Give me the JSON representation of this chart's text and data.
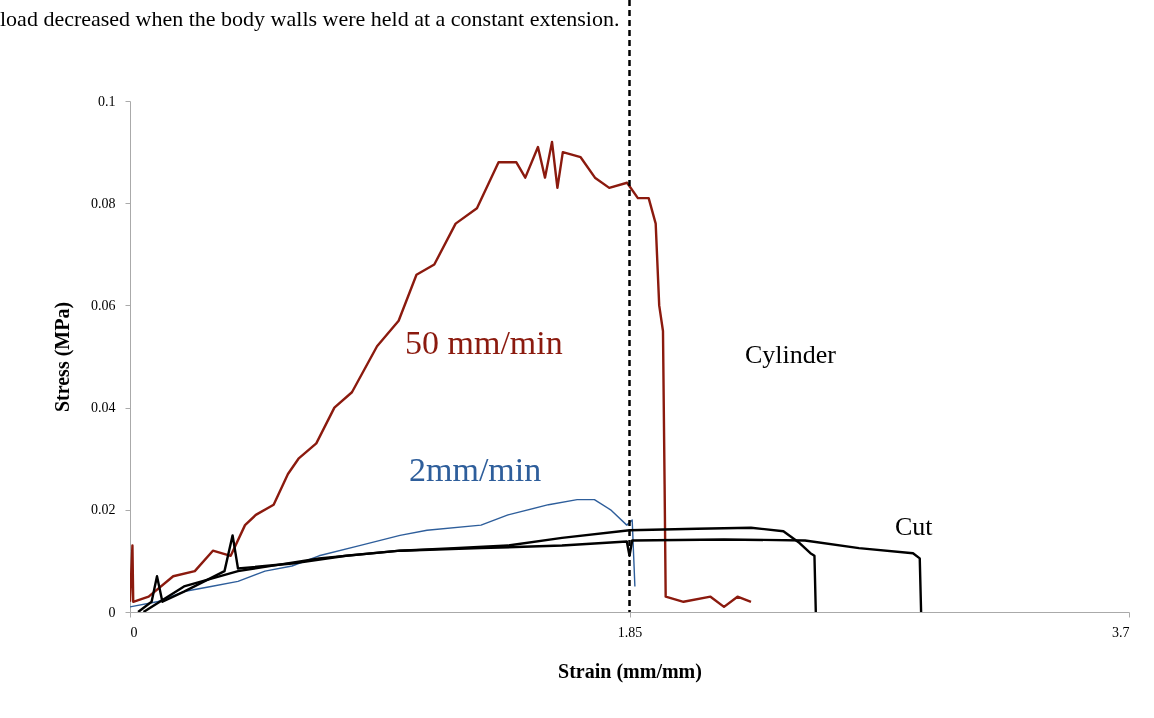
{
  "chart_data": {
    "type": "line",
    "xlabel": "Strain (mm/mm)",
    "ylabel": "Stress (MPa)",
    "xlim": [
      0,
      3.7
    ],
    "xticks": [
      0,
      1.85,
      3.7
    ],
    "ylim": [
      0,
      0.1
    ],
    "yticks": [
      0,
      0.02,
      0.04,
      0.06,
      0.08,
      0.1
    ],
    "grid": false,
    "marker": "none",
    "line_style": "solid",
    "series": [
      {
        "name": "50 mm/min",
        "color": "#8b1a0e",
        "x": [
          0,
          0.009,
          0.012,
          0.069,
          0.16,
          0.24,
          0.307,
          0.373,
          0.426,
          0.466,
          0.532,
          0.585,
          0.624,
          0.69,
          0.757,
          0.822,
          0.915,
          0.995,
          1.061,
          1.127,
          1.206,
          1.285,
          1.365,
          1.431,
          1.464,
          1.511,
          1.537,
          1.563,
          1.583,
          1.603,
          1.669,
          1.722,
          1.775,
          1.841,
          1.881,
          1.921,
          1.947,
          1.96,
          1.974,
          1.98,
          1.984,
          2.05,
          2.15,
          2.2,
          2.25,
          2.3
        ],
        "values": [
          0.002,
          0.013,
          0.002,
          0.003,
          0.007,
          0.008,
          0.012,
          0.011,
          0.017,
          0.019,
          0.021,
          0.027,
          0.03,
          0.033,
          0.04,
          0.043,
          0.052,
          0.057,
          0.066,
          0.068,
          0.076,
          0.079,
          0.088,
          0.088,
          0.085,
          0.091,
          0.085,
          0.092,
          0.083,
          0.09,
          0.089,
          0.085,
          0.083,
          0.084,
          0.081,
          0.081,
          0.076,
          0.06,
          0.055,
          0.025,
          0.003,
          0.002,
          0.003,
          0.001,
          0.003,
          0.002
        ]
      },
      {
        "name": "2mm/min",
        "color": "#2e5e9b",
        "x": [
          0,
          0.1,
          0.2,
          0.3,
          0.4,
          0.5,
          0.6,
          0.7,
          0.85,
          1.0,
          1.1,
          1.3,
          1.4,
          1.55,
          1.656,
          1.72,
          1.78,
          1.84,
          1.86,
          1.87
        ],
        "values": [
          0.001,
          0.002,
          0.004,
          0.005,
          0.006,
          0.008,
          0.009,
          0.011,
          0.013,
          0.015,
          0.016,
          0.017,
          0.019,
          0.021,
          0.022,
          0.022,
          0.02,
          0.017,
          0.018,
          0.005
        ]
      },
      {
        "color": "#000000",
        "x": [
          0.03,
          0.08,
          0.1,
          0.12,
          0.2,
          0.35,
          0.38,
          0.4,
          0.6,
          0.8,
          1.0,
          1.2,
          1.4,
          1.6,
          1.85,
          2.1,
          2.3,
          2.42,
          2.48,
          2.52,
          2.535,
          2.54
        ],
        "values": [
          0,
          0.002,
          0.007,
          0.002,
          0.004,
          0.008,
          0.015,
          0.0085,
          0.0095,
          0.011,
          0.012,
          0.0125,
          0.013,
          0.0145,
          0.016,
          0.0163,
          0.0165,
          0.0158,
          0.0135,
          0.0115,
          0.011,
          0
        ]
      },
      {
        "color": "#000000",
        "x": [
          0.05,
          0.2,
          0.4,
          0.7,
          1.0,
          1.3,
          1.6,
          1.84,
          1.85,
          1.86,
          2.2,
          2.5,
          2.7,
          2.9,
          2.925,
          2.93
        ],
        "values": [
          0,
          0.005,
          0.008,
          0.0105,
          0.012,
          0.0125,
          0.013,
          0.0138,
          0.011,
          0.014,
          0.0142,
          0.014,
          0.0125,
          0.0115,
          0.0105,
          0
        ]
      }
    ],
    "ref_lines": [
      {
        "axis": "x",
        "value": 1.85,
        "color": "#000000",
        "line_style": "dashed"
      }
    ],
    "annotations": [
      "load decreased when the body walls were held at a constant extension.",
      "Cylinder",
      "Cut"
    ]
  }
}
